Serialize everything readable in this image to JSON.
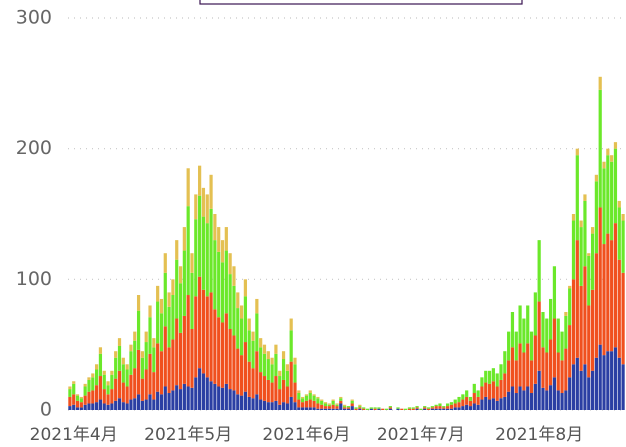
{
  "chart_data": {
    "type": "stacked_bar",
    "categories": [
      null,
      "2021年4月",
      null,
      null,
      null,
      null,
      null,
      null,
      null,
      null,
      null,
      null,
      null,
      null,
      null,
      null,
      null,
      null,
      null,
      null,
      null,
      null,
      null,
      null,
      null,
      null,
      null,
      null,
      null,
      null,
      null,
      "2021年5月",
      null,
      null,
      null,
      null,
      null,
      null,
      null,
      null,
      null,
      null,
      null,
      null,
      null,
      null,
      null,
      null,
      null,
      null,
      null,
      null,
      null,
      null,
      null,
      null,
      null,
      null,
      null,
      null,
      null,
      null,
      "2021年6月",
      null,
      null,
      null,
      null,
      null,
      null,
      null,
      null,
      null,
      null,
      null,
      null,
      null,
      null,
      null,
      null,
      null,
      null,
      null,
      null,
      null,
      null,
      null,
      null,
      null,
      null,
      null,
      null,
      null,
      "2021年7月",
      null,
      null,
      null,
      null,
      null,
      null,
      null,
      null,
      null,
      null,
      null,
      null,
      null,
      null,
      null,
      null,
      null,
      null,
      null,
      null,
      null,
      null,
      null,
      null,
      null,
      null,
      null,
      null,
      null,
      null,
      "2021年8月",
      null,
      null,
      null,
      null,
      null,
      null,
      null,
      null,
      null,
      null,
      null,
      null,
      null,
      null,
      null,
      null,
      null,
      null,
      null,
      null,
      null,
      null
    ],
    "series": [
      {
        "color": "#2b3fa3",
        "values": [
          3,
          4,
          2,
          2,
          4,
          5,
          5,
          6,
          8,
          5,
          4,
          5,
          7,
          9,
          6,
          5,
          8,
          9,
          12,
          7,
          8,
          12,
          8,
          14,
          12,
          18,
          13,
          15,
          19,
          16,
          20,
          18,
          17,
          25,
          32,
          28,
          25,
          22,
          20,
          18,
          17,
          20,
          16,
          15,
          12,
          11,
          14,
          10,
          9,
          12,
          8,
          7,
          6,
          6,
          7,
          4,
          6,
          5,
          10,
          6,
          2,
          2,
          2,
          2,
          2,
          1,
          1,
          1,
          1,
          1,
          1,
          5,
          1,
          1,
          3,
          0,
          1,
          0,
          0,
          1,
          0,
          1,
          0,
          0,
          1,
          0,
          1,
          0,
          0,
          0,
          0,
          1,
          0,
          1,
          0,
          1,
          1,
          1,
          1,
          1,
          1,
          2,
          2,
          3,
          4,
          3,
          5,
          4,
          8,
          10,
          8,
          9,
          7,
          9,
          10,
          14,
          18,
          13,
          18,
          15,
          18,
          13,
          20,
          30,
          17,
          15,
          19,
          25,
          15,
          13,
          15,
          25,
          35,
          40,
          30,
          35,
          25,
          30,
          40,
          50,
          42,
          45,
          45,
          48,
          40,
          35
        ]
      },
      {
        "color": "#f0501e",
        "values": [
          7,
          8,
          5,
          4,
          7,
          9,
          10,
          13,
          18,
          11,
          8,
          11,
          17,
          21,
          15,
          13,
          19,
          23,
          34,
          17,
          23,
          31,
          21,
          37,
          33,
          46,
          35,
          39,
          51,
          43,
          52,
          70,
          45,
          62,
          70,
          64,
          62,
          68,
          57,
          53,
          50,
          54,
          46,
          42,
          35,
          31,
          38,
          27,
          23,
          33,
          21,
          19,
          17,
          15,
          19,
          12,
          17,
          13,
          27,
          15,
          6,
          4,
          5,
          6,
          5,
          4,
          3,
          2,
          2,
          3,
          2,
          2,
          1,
          1,
          2,
          1,
          1,
          1,
          0,
          0,
          1,
          0,
          1,
          0,
          1,
          0,
          0,
          1,
          0,
          1,
          1,
          1,
          0,
          1,
          1,
          1,
          2,
          2,
          1,
          2,
          3,
          3,
          4,
          5,
          6,
          4,
          8,
          6,
          10,
          11,
          12,
          13,
          11,
          14,
          18,
          24,
          30,
          25,
          33,
          29,
          33,
          25,
          37,
          53,
          31,
          29,
          35,
          45,
          29,
          25,
          32,
          40,
          65,
          90,
          65,
          75,
          55,
          62,
          80,
          105,
          85,
          90,
          85,
          95,
          75,
          70
        ]
      },
      {
        "color": "#6be82a",
        "values": [
          6,
          8,
          4,
          3,
          7,
          9,
          10,
          12,
          17,
          11,
          7,
          11,
          16,
          19,
          14,
          13,
          18,
          21,
          30,
          16,
          21,
          28,
          19,
          32,
          29,
          41,
          31,
          34,
          45,
          38,
          50,
          68,
          43,
          59,
          62,
          56,
          56,
          64,
          53,
          50,
          46,
          48,
          42,
          38,
          31,
          28,
          35,
          24,
          21,
          29,
          19,
          17,
          16,
          14,
          17,
          10,
          16,
          12,
          24,
          14,
          5,
          3,
          4,
          5,
          4,
          4,
          3,
          2,
          1,
          3,
          1,
          2,
          1,
          1,
          2,
          1,
          1,
          1,
          1,
          1,
          1,
          1,
          0,
          1,
          1,
          0,
          1,
          0,
          1,
          1,
          1,
          1,
          1,
          1,
          1,
          1,
          1,
          2,
          1,
          2,
          2,
          3,
          4,
          4,
          5,
          3,
          7,
          5,
          7,
          9,
          10,
          10,
          10,
          12,
          17,
          22,
          27,
          22,
          29,
          26,
          29,
          22,
          33,
          47,
          27,
          26,
          31,
          40,
          26,
          22,
          25,
          28,
          45,
          65,
          45,
          50,
          38,
          43,
          55,
          90,
          58,
          60,
          60,
          57,
          40,
          40
        ]
      },
      {
        "color": "#e4c052",
        "values": [
          2,
          2,
          1,
          1,
          2,
          2,
          3,
          4,
          5,
          3,
          3,
          3,
          5,
          6,
          5,
          4,
          5,
          7,
          12,
          5,
          8,
          9,
          7,
          12,
          11,
          15,
          11,
          12,
          15,
          13,
          18,
          29,
          15,
          19,
          23,
          22,
          22,
          26,
          20,
          19,
          17,
          18,
          16,
          15,
          12,
          10,
          13,
          9,
          7,
          11,
          7,
          7,
          6,
          5,
          7,
          4,
          6,
          5,
          9,
          5,
          2,
          1,
          1,
          2,
          1,
          1,
          1,
          1,
          1,
          1,
          1,
          1,
          1,
          0,
          1,
          0,
          1,
          0,
          0,
          0,
          0,
          0,
          0,
          0,
          0,
          0,
          0,
          0,
          0,
          0,
          0,
          0,
          0,
          0,
          0,
          0,
          0,
          0,
          0,
          0,
          0,
          0,
          0,
          0,
          0,
          0,
          0,
          0,
          0,
          0,
          0,
          0,
          0,
          0,
          0,
          0,
          0,
          0,
          0,
          0,
          0,
          0,
          0,
          0,
          0,
          0,
          0,
          0,
          0,
          0,
          3,
          2,
          5,
          5,
          5,
          5,
          2,
          5,
          5,
          10,
          5,
          5,
          5,
          5,
          5,
          5
        ]
      }
    ],
    "ylim": [
      0,
      300
    ],
    "yticks": [
      0,
      100,
      200,
      300
    ],
    "grid": true
  }
}
